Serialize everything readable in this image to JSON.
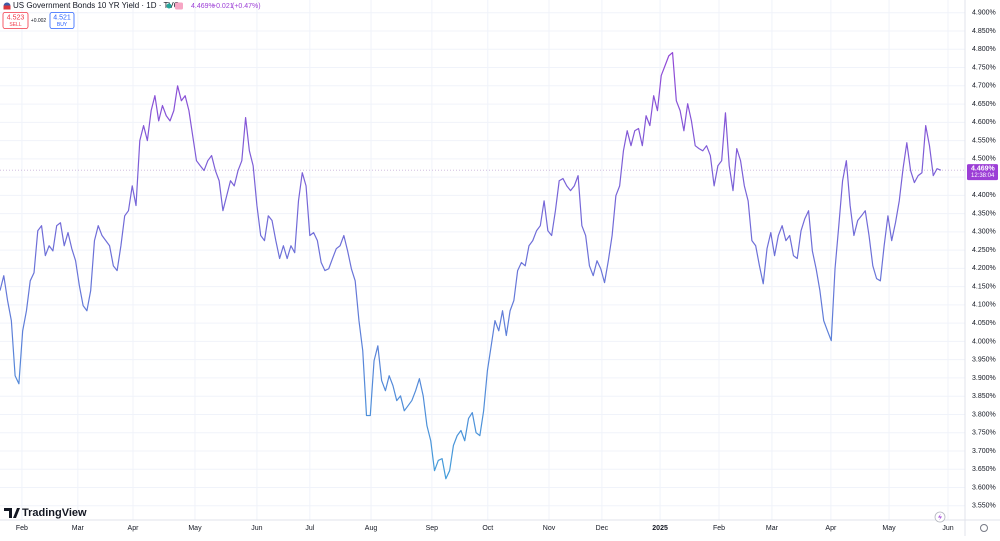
{
  "header": {
    "price": "4.469%",
    "change": "+0.021",
    "change_pct": "(+0.47%)",
    "sell_price": "4.523",
    "sell": "SELL",
    "spread": "+0.002",
    "buy_price": "4.521",
    "buy": "BUY",
    "brand": "TradingView"
  },
  "chart_data": {
    "type": "line",
    "title": "US Government Bonds 10 YR Yield · 1D · TVC",
    "series": [
      {
        "colors": [
          "#9c3ed6",
          "#3aa6da"
        ],
        "last_label": "4.469%",
        "countdown": "12:38:04",
        "label_color": "#9c3ed6",
        "values": [
          4.139,
          4.18,
          4.112,
          4.057,
          3.906,
          3.884,
          4.029,
          4.084,
          4.166,
          4.188,
          4.303,
          4.317,
          4.235,
          4.262,
          4.248,
          4.317,
          4.325,
          4.262,
          4.298,
          4.254,
          4.221,
          4.153,
          4.098,
          4.084,
          4.139,
          4.276,
          4.317,
          4.29,
          4.276,
          4.262,
          4.207,
          4.194,
          4.262,
          4.344,
          4.358,
          4.426,
          4.372,
          4.55,
          4.591,
          4.55,
          4.632,
          4.673,
          4.604,
          4.646,
          4.618,
          4.604,
          4.632,
          4.7,
          4.659,
          4.673,
          4.632,
          4.563,
          4.495,
          4.481,
          4.468,
          4.495,
          4.509,
          4.468,
          4.44,
          4.358,
          4.399,
          4.44,
          4.426,
          4.468,
          4.495,
          4.613,
          4.522,
          4.481,
          4.372,
          4.29,
          4.276,
          4.344,
          4.331,
          4.276,
          4.227,
          4.262,
          4.227,
          4.262,
          4.243,
          4.385,
          4.462,
          4.426,
          4.29,
          4.298,
          4.276,
          4.216,
          4.194,
          4.199,
          4.227,
          4.254,
          4.262,
          4.29,
          4.248,
          4.199,
          4.166,
          4.057,
          3.975,
          3.797,
          3.797,
          3.947,
          3.988,
          3.893,
          3.865,
          3.906,
          3.879,
          3.838,
          3.851,
          3.81,
          3.824,
          3.838,
          3.865,
          3.898,
          3.851,
          3.769,
          3.728,
          3.646,
          3.674,
          3.679,
          3.624,
          3.646,
          3.715,
          3.742,
          3.756,
          3.728,
          3.789,
          3.805,
          3.75,
          3.742,
          3.81,
          3.92,
          3.988,
          4.057,
          4.029,
          4.084,
          4.016,
          4.084,
          4.112,
          4.194,
          4.216,
          4.207,
          4.262,
          4.276,
          4.303,
          4.317,
          4.385,
          4.303,
          4.29,
          4.358,
          4.44,
          4.446,
          4.426,
          4.413,
          4.426,
          4.454,
          4.317,
          4.29,
          4.207,
          4.18,
          4.221,
          4.199,
          4.161,
          4.221,
          4.29,
          4.399,
          4.426,
          4.522,
          4.577,
          4.536,
          4.577,
          4.583,
          4.536,
          4.618,
          4.591,
          4.673,
          4.632,
          4.728,
          4.755,
          4.782,
          4.791,
          4.659,
          4.632,
          4.577,
          4.651,
          4.604,
          4.536,
          4.528,
          4.522,
          4.536,
          4.509,
          4.426,
          4.481,
          4.495,
          4.626,
          4.481,
          4.413,
          4.528,
          4.495,
          4.426,
          4.385,
          4.276,
          4.262,
          4.207,
          4.158,
          4.254,
          4.298,
          4.235,
          4.29,
          4.317,
          4.276,
          4.29,
          4.235,
          4.227,
          4.303,
          4.336,
          4.358,
          4.248,
          4.199,
          4.139,
          4.057,
          4.029,
          4.002,
          4.199,
          4.317,
          4.44,
          4.495,
          4.372,
          4.29,
          4.331,
          4.344,
          4.358,
          4.29,
          4.207,
          4.172,
          4.166,
          4.262,
          4.344,
          4.276,
          4.325,
          4.385,
          4.473,
          4.544,
          4.468,
          4.435,
          4.454,
          4.462,
          4.591,
          4.536,
          4.454,
          4.473,
          4.469
        ]
      }
    ],
    "xlim": [
      0,
      255.4
    ],
    "xticks": [
      {
        "value": 5.8,
        "label": "Feb"
      },
      {
        "value": 20.6,
        "label": "Mar"
      },
      {
        "value": 35.2,
        "label": "Apr"
      },
      {
        "value": 51.6,
        "label": "May"
      },
      {
        "value": 68.0,
        "label": "Jun"
      },
      {
        "value": 82.0,
        "label": "Jul"
      },
      {
        "value": 98.2,
        "label": "Aug"
      },
      {
        "value": 114.3,
        "label": "Sep"
      },
      {
        "value": 129.1,
        "label": "Oct"
      },
      {
        "value": 145.3,
        "label": "Nov"
      },
      {
        "value": 159.3,
        "label": "Dec"
      },
      {
        "value": 174.7,
        "label": "2025"
      },
      {
        "value": 190.3,
        "label": "Feb"
      },
      {
        "value": 204.3,
        "label": "Mar"
      },
      {
        "value": 219.9,
        "label": "Apr"
      },
      {
        "value": 235.3,
        "label": "May"
      },
      {
        "value": 250.9,
        "label": "Jun"
      }
    ],
    "ylim": [
      3.5,
      4.935
    ],
    "yticks": [
      {
        "value": 3.55,
        "label": "3.550%"
      },
      {
        "value": 3.6,
        "label": "3.600%"
      },
      {
        "value": 3.65,
        "label": "3.650%"
      },
      {
        "value": 3.7,
        "label": "3.700%"
      },
      {
        "value": 3.75,
        "label": "3.750%"
      },
      {
        "value": 3.8,
        "label": "3.800%"
      },
      {
        "value": 3.85,
        "label": "3.850%"
      },
      {
        "value": 3.9,
        "label": "3.900%"
      },
      {
        "value": 3.95,
        "label": "3.950%"
      },
      {
        "value": 4.0,
        "label": "4.000%"
      },
      {
        "value": 4.05,
        "label": "4.050%"
      },
      {
        "value": 4.1,
        "label": "4.100%"
      },
      {
        "value": 4.15,
        "label": "4.150%"
      },
      {
        "value": 4.2,
        "label": "4.200%"
      },
      {
        "value": 4.25,
        "label": "4.250%"
      },
      {
        "value": 4.3,
        "label": "4.300%"
      },
      {
        "value": 4.35,
        "label": "4.350%"
      },
      {
        "value": 4.4,
        "label": "4.400%"
      },
      {
        "value": 4.45,
        "label": "4.450%"
      },
      {
        "value": 4.5,
        "label": "4.500%"
      },
      {
        "value": 4.55,
        "label": "4.550%"
      },
      {
        "value": 4.6,
        "label": "4.600%"
      },
      {
        "value": 4.65,
        "label": "4.650%"
      },
      {
        "value": 4.7,
        "label": "4.700%"
      },
      {
        "value": 4.75,
        "label": "4.750%"
      },
      {
        "value": 4.8,
        "label": "4.800%"
      },
      {
        "value": 4.85,
        "label": "4.850%"
      },
      {
        "value": 4.9,
        "label": "4.900%"
      }
    ],
    "grid": true
  }
}
